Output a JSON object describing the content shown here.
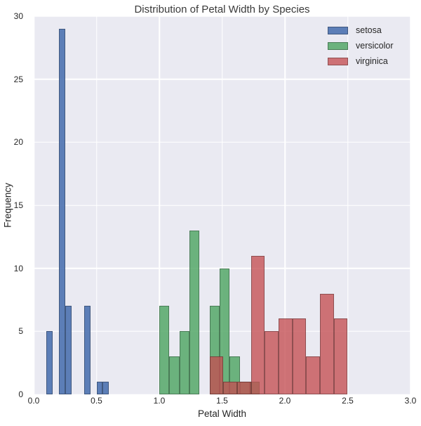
{
  "figure": {
    "background": "#FFFFFF",
    "axes_background": "#EAEAF2",
    "grid_color": "#FFFFFF",
    "text_color": "#262626",
    "bar_edge_color": "rgba(0,0,0,0.3)"
  },
  "chart_data": {
    "type": "bar",
    "subtype": "overlaid-histogram",
    "title": "Distribution of Petal Width by Species",
    "xlabel": "Petal Width",
    "ylabel": "Frequency",
    "xlim": [
      0.0,
      3.0
    ],
    "ylim": [
      0,
      30
    ],
    "xtick_values": [
      0.0,
      0.5,
      1.0,
      1.5,
      2.0,
      2.5,
      3.0
    ],
    "xtick_labels": [
      "0.0",
      "0.5",
      "1.0",
      "1.5",
      "2.0",
      "2.5",
      "3.0"
    ],
    "ytick_values": [
      0,
      5,
      10,
      15,
      20,
      25,
      30
    ],
    "ytick_labels": [
      "0",
      "5",
      "10",
      "15",
      "20",
      "25",
      "30"
    ],
    "grid": true,
    "legend_position": "upper right",
    "series": [
      {
        "name": "setosa",
        "color": "#4C72B0",
        "fill": "rgba(76,114,176,0.9)",
        "bin_width": 0.05,
        "bins": [
          [
            0.1,
            0.15,
            5
          ],
          [
            0.2,
            0.25,
            29
          ],
          [
            0.25,
            0.3,
            7
          ],
          [
            0.4,
            0.45,
            7
          ],
          [
            0.5,
            0.55,
            1
          ],
          [
            0.55,
            0.6,
            1
          ]
        ]
      },
      {
        "name": "versicolor",
        "color": "#55A868",
        "fill": "rgba(85,168,104,0.85)",
        "bin_width": 0.08,
        "bins": [
          [
            1.0,
            1.08,
            7
          ],
          [
            1.08,
            1.16,
            3
          ],
          [
            1.16,
            1.24,
            5
          ],
          [
            1.24,
            1.32,
            13
          ],
          [
            1.4,
            1.48,
            7
          ],
          [
            1.48,
            1.56,
            10
          ],
          [
            1.56,
            1.64,
            3
          ],
          [
            1.64,
            1.72,
            1
          ],
          [
            1.72,
            1.8,
            1
          ]
        ]
      },
      {
        "name": "virginica",
        "color": "#C44E52",
        "fill": "rgba(196,78,82,0.78)",
        "bin_width": 0.11,
        "bins": [
          [
            1.4,
            1.51,
            3
          ],
          [
            1.51,
            1.62,
            1
          ],
          [
            1.62,
            1.73,
            1
          ],
          [
            1.73,
            1.84,
            11
          ],
          [
            1.84,
            1.95,
            5
          ],
          [
            1.95,
            2.06,
            6
          ],
          [
            2.06,
            2.17,
            6
          ],
          [
            2.17,
            2.28,
            3
          ],
          [
            2.28,
            2.39,
            8
          ],
          [
            2.39,
            2.5,
            6
          ]
        ]
      }
    ]
  }
}
